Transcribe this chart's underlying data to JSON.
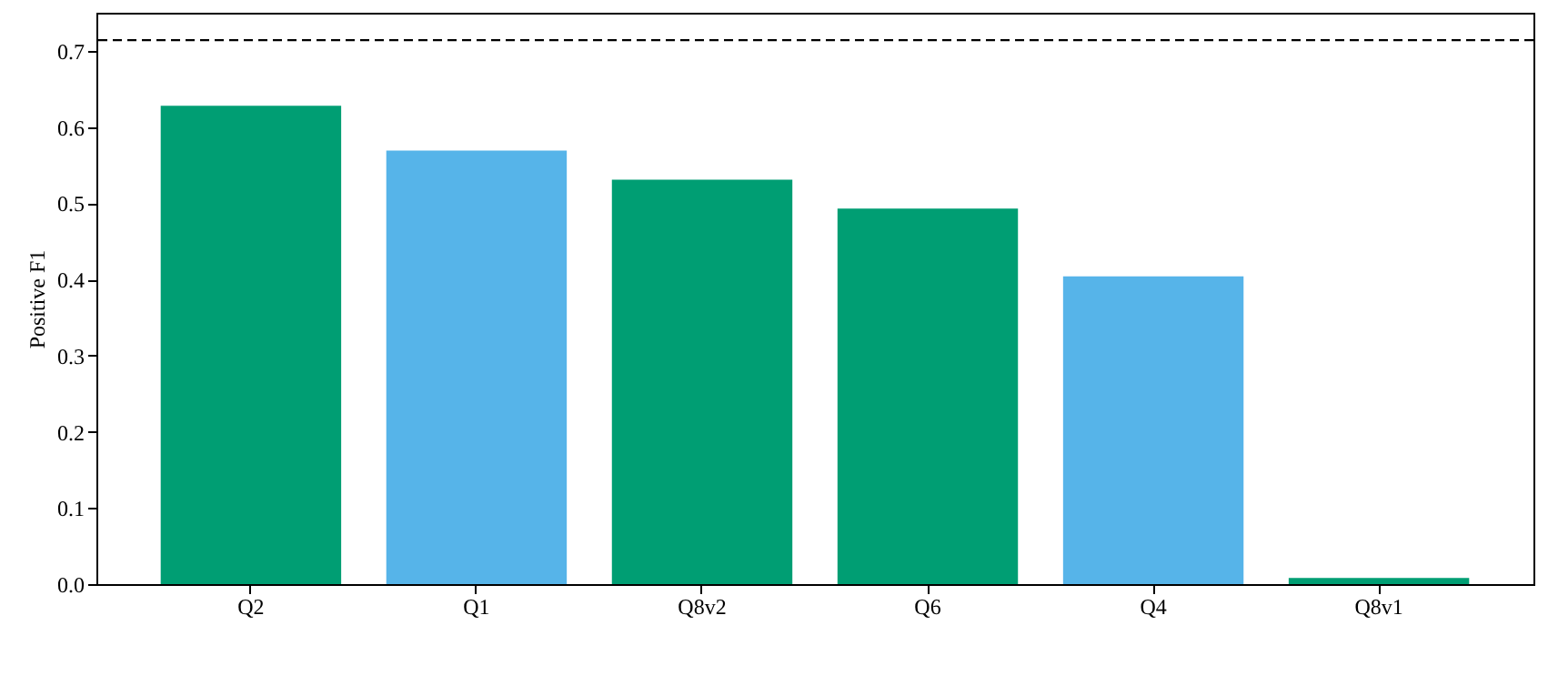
{
  "chart_data": {
    "type": "bar",
    "ylabel": "Positive F1",
    "categories": [
      "Q2",
      "Q1",
      "Q8v2",
      "Q6",
      "Q4",
      "Q8v1"
    ],
    "values": [
      0.628,
      0.569,
      0.531,
      0.493,
      0.404,
      0.008
    ],
    "colors": [
      "#009e73",
      "#56b4e9",
      "#009e73",
      "#009e73",
      "#56b4e9",
      "#009e73"
    ],
    "ylim": [
      0,
      0.75
    ],
    "yticks": [
      {
        "value": 0,
        "label": "0.0"
      },
      0.1,
      0.2,
      0.3,
      0.4,
      0.5,
      0.6,
      0.7
    ],
    "ref_lines": [
      {
        "axis": "y",
        "value": 0.714,
        "color": "#000000",
        "line_style": "dashed"
      }
    ],
    "grid": false
  }
}
